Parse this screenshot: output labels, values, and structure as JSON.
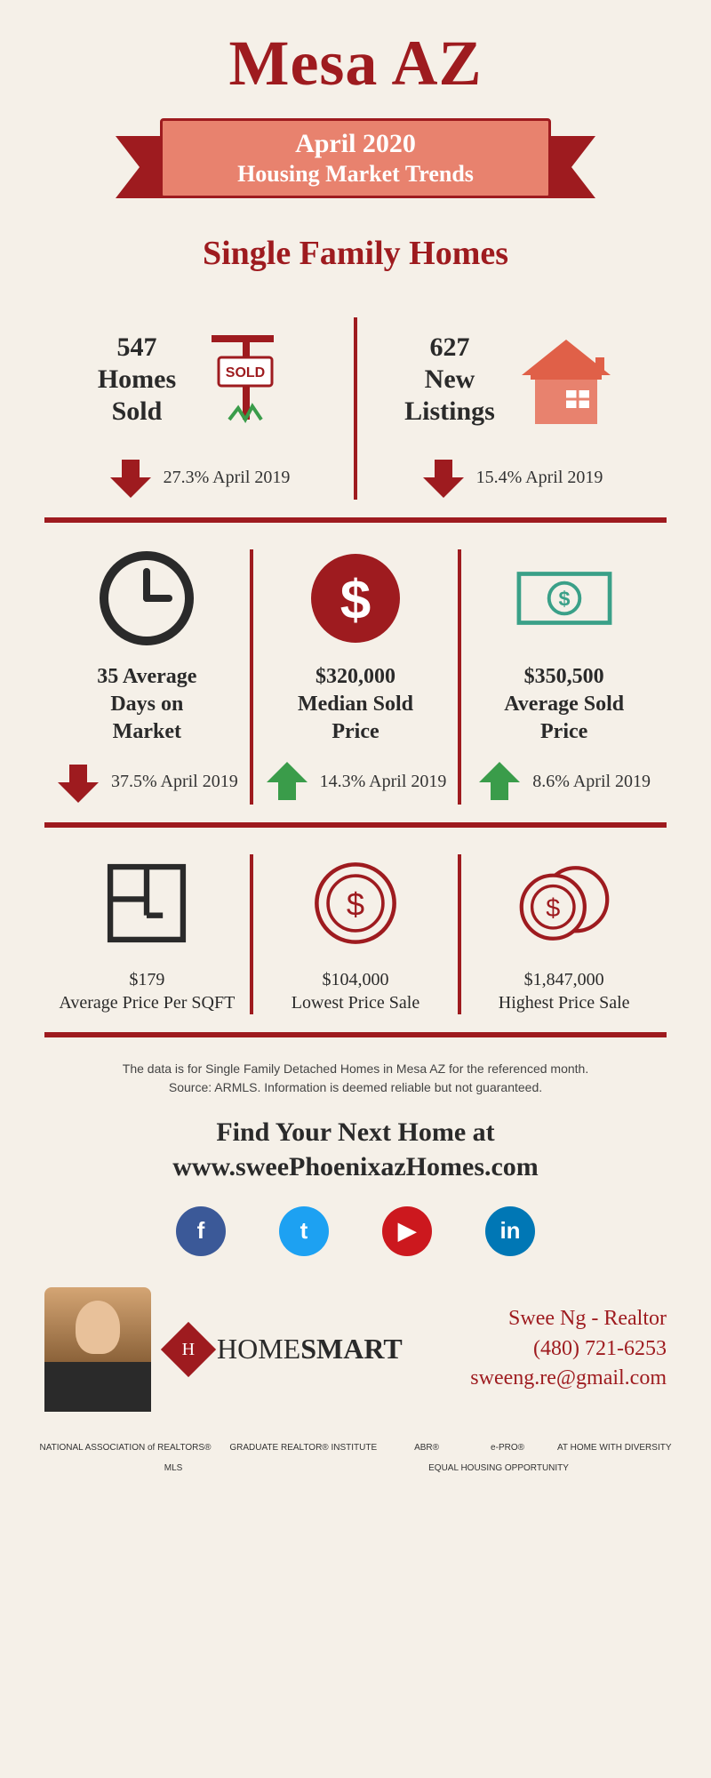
{
  "colors": {
    "primary_red": "#9e1b1f",
    "salmon": "#e8826e",
    "green": "#3a9c4a",
    "teal": "#3aa088",
    "dark": "#2a2a2a",
    "bg": "#f5f0e8"
  },
  "header": {
    "title": "Mesa AZ",
    "ribbon_line1": "April 2020",
    "ribbon_line2": "Housing Market Trends",
    "subtitle": "Single Family Homes"
  },
  "row1": {
    "sold": {
      "value": "547",
      "label1": "Homes",
      "label2": "Sold",
      "change": "27.3% April 2019",
      "direction": "down"
    },
    "listings": {
      "value": "627",
      "label1": "New",
      "label2": "Listings",
      "change": "15.4% April 2019",
      "direction": "down"
    }
  },
  "row2": {
    "days": {
      "value": "35 Average",
      "label1": "Days on",
      "label2": "Market",
      "change": "37.5% April 2019",
      "direction": "down"
    },
    "median": {
      "value": "$320,000",
      "label1": "Median Sold",
      "label2": "Price",
      "change": "14.3% April 2019",
      "direction": "up"
    },
    "average": {
      "value": "$350,500",
      "label1": "Average Sold",
      "label2": "Price",
      "change": "8.6% April 2019",
      "direction": "up"
    }
  },
  "row3": {
    "sqft": {
      "value": "$179",
      "label": "Average Price Per SQFT"
    },
    "lowest": {
      "value": "$104,000",
      "label": "Lowest Price Sale"
    },
    "highest": {
      "value": "$1,847,000",
      "label": "Highest Price Sale"
    }
  },
  "footer": {
    "disclaimer1": "The data is for Single Family Detached Homes in Mesa AZ for the referenced month.",
    "disclaimer2": "Source: ARMLS. Information is deemed reliable but not guaranteed.",
    "cta1": "Find Your Next Home at",
    "cta2": "www.sweePhoenixazHomes.com",
    "social": {
      "facebook": {
        "color": "#3b5998",
        "glyph": "f"
      },
      "twitter": {
        "color": "#1da1f2",
        "glyph": "t"
      },
      "youtube": {
        "color": "#cc181e",
        "glyph": "▶"
      },
      "linkedin": {
        "color": "#0077b5",
        "glyph": "in"
      }
    },
    "brand_name1": "HOME",
    "brand_name2": "SMART",
    "contact_name": "Swee Ng - Realtor",
    "contact_phone": "(480) 721-6253",
    "contact_email": "sweeng.re@gmail.com",
    "logos": [
      "NATIONAL ASSOCIATION of REALTORS®",
      "GRADUATE REALTOR® INSTITUTE",
      "ABR®",
      "e-PRO®",
      "AT HOME WITH DIVERSITY",
      "MLS",
      "EQUAL HOUSING OPPORTUNITY"
    ]
  }
}
